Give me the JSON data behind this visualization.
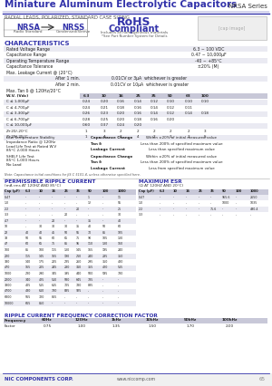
{
  "title": "Miniature Aluminum Electrolytic Capacitors",
  "series": "NRSA Series",
  "header_color": "#3333aa",
  "bg_color": "#ffffff",
  "subtitle": "RADIAL LEADS, POLARIZED, STANDARD CASE SIZING",
  "rohs_sub": "Includes all homogeneous materials",
  "rohs_sub2": "*See Part Number System for Details",
  "characteristics_title": "CHARACTERISTICS",
  "characteristics": [
    [
      "Rated Voltage Range",
      "6.3 ~ 100 VDC"
    ],
    [
      "Capacitance Range",
      "0.47 ~ 10,000μF"
    ],
    [
      "Operating Temperature Range",
      "-40 ~ +85°C"
    ],
    [
      "Capacitance Tolerance",
      "±20% (M)"
    ]
  ],
  "leakage_title": "Max. Leakage Current @ (20°C)",
  "leakage_rows": [
    [
      "After 1 min.",
      "0.01CV or 3μA  whichever is greater"
    ],
    [
      "After 2 min.",
      "0.01CV or 10μA  whichever is greater"
    ]
  ],
  "tan_title": "Max. Tan δ @ 120Hz/20°C",
  "wv_row": [
    "W.V. (Vdc)",
    "6.3",
    "10",
    "16",
    "25",
    "35",
    "50",
    "63",
    "100"
  ],
  "cv_rows": [
    [
      "C ≤ 1,000μF",
      "0.24",
      "0.20",
      "0.16",
      "0.14",
      "0.12",
      "0.10",
      "0.10",
      "0.10"
    ],
    [
      "C ≤ 4,700μF",
      "0.24",
      "0.21",
      "0.18",
      "0.16",
      "0.14",
      "0.12",
      "0.11",
      ""
    ],
    [
      "C ≤ 3,300μF",
      "0.26",
      "0.23",
      "0.20",
      "0.16",
      "0.14",
      "0.12",
      "0.14",
      "0.18"
    ],
    [
      "C ≤ 6,700μF",
      "0.28",
      "0.25",
      "0.20",
      "0.18",
      "0.16",
      "0.20",
      "",
      ""
    ]
  ],
  "cv_extra_rows": [
    [
      "C ≤ 10,000μF",
      "0.60",
      "0.37",
      "0.24",
      "0.20",
      "",
      "",
      "",
      ""
    ],
    [
      "Z+20/-20°C",
      "1",
      "3",
      "2",
      "2",
      "2",
      "2",
      "2",
      "3"
    ],
    [
      "Z+20/-25°C",
      "1",
      "4",
      "2",
      "4",
      "2",
      "3",
      "3",
      "5"
    ]
  ],
  "low_temp_title": "Low Temperature Stability\nImpedance Ratio @ 120Hz",
  "load_life_title": "Load Life Test at Rated W.V\n85°C 2,000 Hours",
  "load_life_rows": [
    [
      "Capacitance Change",
      "Within ±20% of initial measured value"
    ],
    [
      "Tan δ",
      "Less than 200% of specified maximum value"
    ],
    [
      "Leakage Current",
      "Less than specified maximum value"
    ]
  ],
  "shelf_life_title": "SHELF Life Test\n85°C 1,000 Hours\nNo Load",
  "shelf_life_rows": [
    [
      "Capacitance Change",
      "Within ±20% of initial measured value"
    ],
    [
      "Tan δ",
      "Less than 200% of specified maximum value"
    ],
    [
      "Leakage Current",
      "Less from specified maximum value"
    ]
  ],
  "note": "Note: Capacitance initial conditions for JIS C 5101-4, unless otherwise specified here.",
  "permissible_title": "PERMISSIBLE RIPPLE CURRENT",
  "permissible_sub": "(mA rms AT 120HZ AND 85°C)",
  "max_esr_title": "MAXIMUM ESR",
  "max_esr_sub": "(Ω AT 120HZ AND 20°C)",
  "perm_headers": [
    "Cap (μF)",
    "6.3",
    "10",
    "16",
    "25",
    "35",
    "50",
    "100",
    "1000"
  ],
  "perm_rows": [
    [
      "0.47",
      "-",
      "-",
      "-",
      "-",
      "-",
      "1",
      "-",
      "11"
    ],
    [
      "1.0",
      "-",
      "-",
      "-",
      "-",
      "-",
      "12",
      "-",
      "55"
    ],
    [
      "2.2",
      "-",
      "-",
      "-",
      "-",
      "20",
      "-",
      "-",
      "25"
    ],
    [
      "3.3",
      "-",
      "-",
      "-",
      "20",
      "-",
      "-",
      "-",
      "30"
    ],
    [
      "4.7",
      "-",
      "-",
      "20",
      "-",
      "-",
      "35",
      "-",
      "40"
    ],
    [
      "10",
      "-",
      "30",
      "30",
      "30",
      "35",
      "40",
      "50",
      "60"
    ],
    [
      "22",
      "40",
      "40",
      "45",
      "50",
      "55",
      "70",
      "85",
      "105"
    ],
    [
      "33",
      "50",
      "55",
      "60",
      "65",
      "75",
      "90",
      "105",
      "130"
    ],
    [
      "47",
      "60",
      "65",
      "75",
      "85",
      "95",
      "110",
      "130",
      "160"
    ],
    [
      "100",
      "85",
      "100",
      "115",
      "130",
      "145",
      "165",
      "195",
      "240"
    ],
    [
      "220",
      "115",
      "145",
      "165",
      "190",
      "210",
      "240",
      "285",
      "350"
    ],
    [
      "330",
      "140",
      "175",
      "205",
      "235",
      "260",
      "295",
      "350",
      "430"
    ],
    [
      "470",
      "165",
      "205",
      "245",
      "280",
      "310",
      "355",
      "420",
      "515"
    ],
    [
      "1000",
      "230",
      "290",
      "345",
      "395",
      "440",
      "500",
      "595",
      "730"
    ],
    [
      "2200",
      "340",
      "425",
      "510",
      "580",
      "645",
      "735",
      "-",
      "-"
    ],
    [
      "3300",
      "405",
      "515",
      "615",
      "705",
      "780",
      "885",
      "-",
      "-"
    ],
    [
      "4700",
      "480",
      "610",
      "730",
      "835",
      "925",
      "-",
      "-",
      "-"
    ],
    [
      "6800",
      "565",
      "720",
      "865",
      "-",
      "-",
      "-",
      "-",
      "-"
    ],
    [
      "10000",
      "665",
      "850",
      "-",
      "-",
      "-",
      "-",
      "-",
      "-"
    ]
  ],
  "esr_headers": [
    "Cap (μF)",
    "6.3",
    "10",
    "16",
    "25",
    "35",
    "50",
    "100",
    "1000"
  ],
  "esr_rows": [
    [
      "0.47",
      "-",
      "-",
      "-",
      "-",
      "-",
      "955.6",
      "-",
      "2650"
    ],
    [
      "1.0",
      "-",
      "-",
      "-",
      "-",
      "-",
      "1000",
      "-",
      "1035"
    ],
    [
      "2.2",
      "-",
      "-",
      "-",
      "-",
      "75.6",
      "-",
      "-",
      "490.4"
    ],
    [
      "3.3",
      "-",
      "-",
      "-",
      "-",
      "-",
      "-",
      "-",
      "-"
    ]
  ],
  "ripple_freq_title": "RIPPLE CURRENT FREQUENCY CORRECTION FACTOR",
  "ripple_freq_headers": [
    "Frequency",
    "60Hz",
    "120Hz",
    "1kHz",
    "10kHz",
    "50kHz",
    "100kHz"
  ],
  "ripple_freq_row": [
    "Factor",
    "0.75",
    "1.00",
    "1.35",
    "1.50",
    "1.70",
    "2.00"
  ],
  "footer_text": "NIC COMPONENTS CORP.",
  "footer_url": "www.niccomp.com",
  "page_num": "65"
}
